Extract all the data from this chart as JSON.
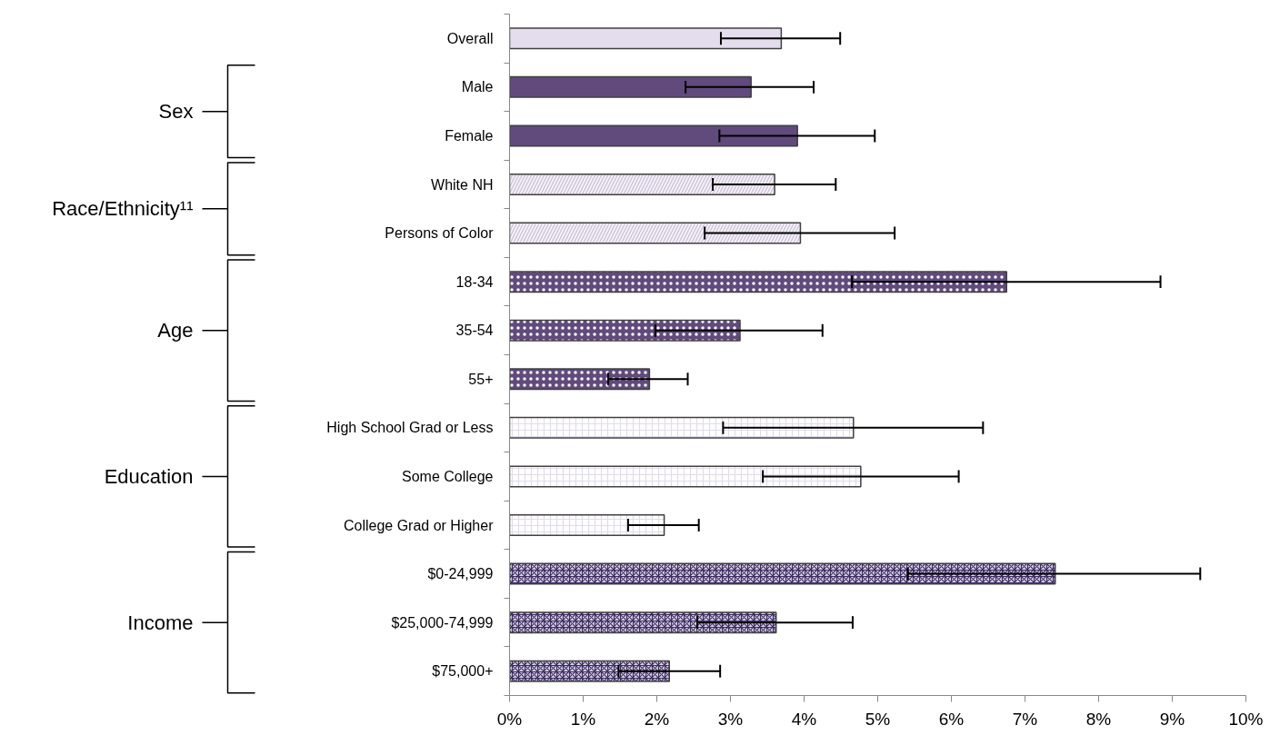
{
  "chart_data": {
    "type": "bar",
    "orientation": "horizontal",
    "categories": [
      "Overall",
      "Male",
      "Female",
      "White NH",
      "Persons of Color",
      "18-34",
      "35-54",
      "55+",
      "High School Grad or Less",
      "Some College",
      "College Grad or Higher",
      "$0-24,999",
      "$25,000-74,999",
      "$75,000+"
    ],
    "values": [
      3.69,
      3.28,
      3.91,
      3.6,
      3.95,
      6.75,
      3.13,
      1.9,
      4.67,
      4.77,
      2.1,
      7.41,
      3.62,
      2.17
    ],
    "errors": [
      [
        2.87,
        4.49
      ],
      [
        2.39,
        4.13
      ],
      [
        2.85,
        4.96
      ],
      [
        2.76,
        4.43
      ],
      [
        2.65,
        5.23
      ],
      [
        4.65,
        8.84
      ],
      [
        1.98,
        4.25
      ],
      [
        1.34,
        2.42
      ],
      [
        2.9,
        6.43
      ],
      [
        3.44,
        6.1
      ],
      [
        1.61,
        2.57
      ],
      [
        5.41,
        9.38
      ],
      [
        2.55,
        4.66
      ],
      [
        1.48,
        2.86
      ]
    ],
    "colors": [
      "#e4dded",
      "#614a7c",
      "#614a7c",
      "#f4f1f7",
      "#f4f1f7",
      "#614a7c",
      "#614a7c",
      "#614a7c",
      "#ffffff",
      "#ffffff",
      "#ffffff",
      "#d9d2e3",
      "#d9d2e3",
      "#d9d2e3"
    ],
    "xlim": [
      0,
      10
    ],
    "xticks": [
      {
        "value": 0,
        "label": "0%"
      },
      {
        "value": 1,
        "label": "1%"
      },
      {
        "value": 2,
        "label": "2%"
      },
      {
        "value": 3,
        "label": "3%"
      },
      {
        "value": 4,
        "label": "4%"
      },
      {
        "value": 5,
        "label": "5%"
      },
      {
        "value": 6,
        "label": "6%"
      },
      {
        "value": 7,
        "label": "7%"
      },
      {
        "value": 8,
        "label": "8%"
      },
      {
        "value": 9,
        "label": "9%"
      },
      {
        "value": 10,
        "label": "10%"
      }
    ],
    "grid": false,
    "annotations": [
      "Sex",
      "Race/Ethnicity¹¹",
      "Age",
      "Education",
      "Income"
    ]
  }
}
